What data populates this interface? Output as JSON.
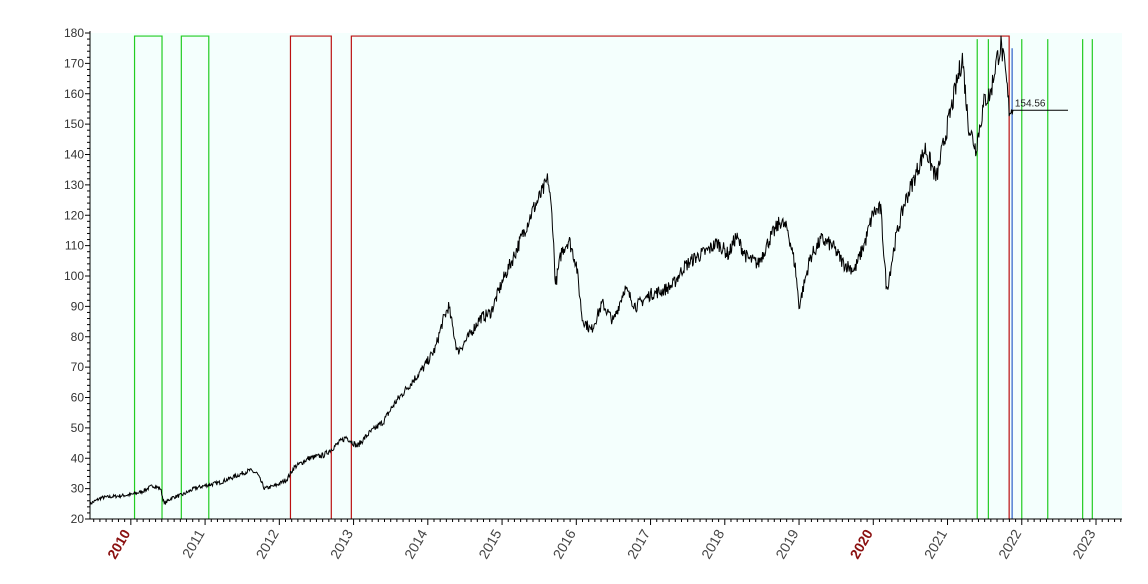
{
  "chart_data": {
    "type": "line",
    "title": "",
    "xlabel": "",
    "ylabel": "",
    "ylim": [
      20,
      180
    ],
    "xlim": [
      2009.45,
      2023.35
    ],
    "yticks": [
      "20",
      "30",
      "40",
      "50",
      "60",
      "70",
      "80",
      "90",
      "100",
      "110",
      "120",
      "130",
      "140",
      "150",
      "160",
      "170",
      "180"
    ],
    "xticks": [
      {
        "label": "2010",
        "value": 2010,
        "highlight": true
      },
      {
        "label": "2011",
        "value": 2011,
        "highlight": false
      },
      {
        "label": "2012",
        "value": 2012,
        "highlight": false
      },
      {
        "label": "2013",
        "value": 2013,
        "highlight": false
      },
      {
        "label": "2014",
        "value": 2014,
        "highlight": false
      },
      {
        "label": "2015",
        "value": 2015,
        "highlight": false
      },
      {
        "label": "2016",
        "value": 2016,
        "highlight": false
      },
      {
        "label": "2017",
        "value": 2017,
        "highlight": false
      },
      {
        "label": "2018",
        "value": 2018,
        "highlight": false
      },
      {
        "label": "2019",
        "value": 2019,
        "highlight": false
      },
      {
        "label": "2020",
        "value": 2020,
        "highlight": true
      },
      {
        "label": "2021",
        "value": 2021,
        "highlight": false
      },
      {
        "label": "2022",
        "value": 2022,
        "highlight": false
      },
      {
        "label": "2023",
        "value": 2023,
        "highlight": false
      }
    ],
    "series": [
      {
        "color": "#000000",
        "points": [
          [
            2009.45,
            25
          ],
          [
            2009.6,
            27
          ],
          [
            2009.8,
            27.5
          ],
          [
            2010.0,
            28
          ],
          [
            2010.15,
            29
          ],
          [
            2010.3,
            31
          ],
          [
            2010.4,
            30
          ],
          [
            2010.45,
            25
          ],
          [
            2010.55,
            27
          ],
          [
            2010.7,
            28
          ],
          [
            2010.85,
            30
          ],
          [
            2011.0,
            31
          ],
          [
            2011.2,
            32
          ],
          [
            2011.4,
            34
          ],
          [
            2011.6,
            36
          ],
          [
            2011.7,
            35
          ],
          [
            2011.8,
            30
          ],
          [
            2011.95,
            31
          ],
          [
            2012.1,
            33
          ],
          [
            2012.2,
            37
          ],
          [
            2012.4,
            40
          ],
          [
            2012.6,
            41
          ],
          [
            2012.75,
            44
          ],
          [
            2012.9,
            47
          ],
          [
            2013.05,
            44
          ],
          [
            2013.2,
            48
          ],
          [
            2013.4,
            52
          ],
          [
            2013.55,
            58
          ],
          [
            2013.75,
            64
          ],
          [
            2013.95,
            70
          ],
          [
            2014.1,
            76
          ],
          [
            2014.2,
            85
          ],
          [
            2014.28,
            90
          ],
          [
            2014.4,
            75
          ],
          [
            2014.55,
            80
          ],
          [
            2014.7,
            86
          ],
          [
            2014.85,
            88
          ],
          [
            2015.0,
            98
          ],
          [
            2015.15,
            106
          ],
          [
            2015.3,
            115
          ],
          [
            2015.42,
            122
          ],
          [
            2015.55,
            128
          ],
          [
            2015.62,
            132
          ],
          [
            2015.68,
            118
          ],
          [
            2015.72,
            97
          ],
          [
            2015.8,
            108
          ],
          [
            2015.9,
            112
          ],
          [
            2016.0,
            104
          ],
          [
            2016.08,
            86
          ],
          [
            2016.2,
            82
          ],
          [
            2016.35,
            91
          ],
          [
            2016.5,
            85
          ],
          [
            2016.65,
            96
          ],
          [
            2016.8,
            90
          ],
          [
            2017.0,
            94
          ],
          [
            2017.15,
            95
          ],
          [
            2017.3,
            97
          ],
          [
            2017.45,
            103
          ],
          [
            2017.6,
            106
          ],
          [
            2017.75,
            108
          ],
          [
            2017.9,
            111
          ],
          [
            2018.05,
            107
          ],
          [
            2018.15,
            113
          ],
          [
            2018.3,
            106
          ],
          [
            2018.45,
            104
          ],
          [
            2018.6,
            112
          ],
          [
            2018.75,
            118
          ],
          [
            2018.85,
            115
          ],
          [
            2018.95,
            103
          ],
          [
            2019.0,
            90
          ],
          [
            2019.15,
            106
          ],
          [
            2019.3,
            112
          ],
          [
            2019.45,
            110
          ],
          [
            2019.6,
            104
          ],
          [
            2019.75,
            102
          ],
          [
            2019.9,
            112
          ],
          [
            2020.0,
            121
          ],
          [
            2020.1,
            122
          ],
          [
            2020.18,
            95
          ],
          [
            2020.3,
            112
          ],
          [
            2020.42,
            124
          ],
          [
            2020.55,
            132
          ],
          [
            2020.7,
            142
          ],
          [
            2020.85,
            132
          ],
          [
            2020.95,
            144
          ],
          [
            2021.05,
            155
          ],
          [
            2021.12,
            163
          ],
          [
            2021.2,
            172
          ],
          [
            2021.28,
            150
          ],
          [
            2021.38,
            142
          ],
          [
            2021.5,
            158
          ],
          [
            2021.58,
            160
          ],
          [
            2021.65,
            170
          ],
          [
            2021.72,
            176
          ],
          [
            2021.78,
            167
          ],
          [
            2021.83,
            155
          ],
          [
            2021.88,
            154.56
          ]
        ]
      }
    ],
    "signal_bands": [
      {
        "color": "#22cc22",
        "start": 2010.05,
        "end": 2010.42
      },
      {
        "color": "#22cc22",
        "start": 2010.68,
        "end": 2011.05
      },
      {
        "color": "#bb1111",
        "start": 2012.15,
        "end": 2012.7
      },
      {
        "color": "#bb1111",
        "start": 2012.97,
        "end": 2021.83
      }
    ],
    "signal_lines": [
      {
        "color": "#22cc22",
        "value": 2021.4
      },
      {
        "color": "#22cc22",
        "value": 2021.55
      },
      {
        "color": "#22cc22",
        "value": 2022.0
      },
      {
        "color": "#22cc22",
        "value": 2022.35
      },
      {
        "color": "#22cc22",
        "value": 2022.82
      },
      {
        "color": "#22cc22",
        "value": 2022.95
      }
    ],
    "marker_line": {
      "color": "#2b5fc9",
      "value": 2021.87
    },
    "last_value": {
      "label": "154.56",
      "value": 154.56
    },
    "plot_background": "#f4fffd",
    "grid": false
  }
}
